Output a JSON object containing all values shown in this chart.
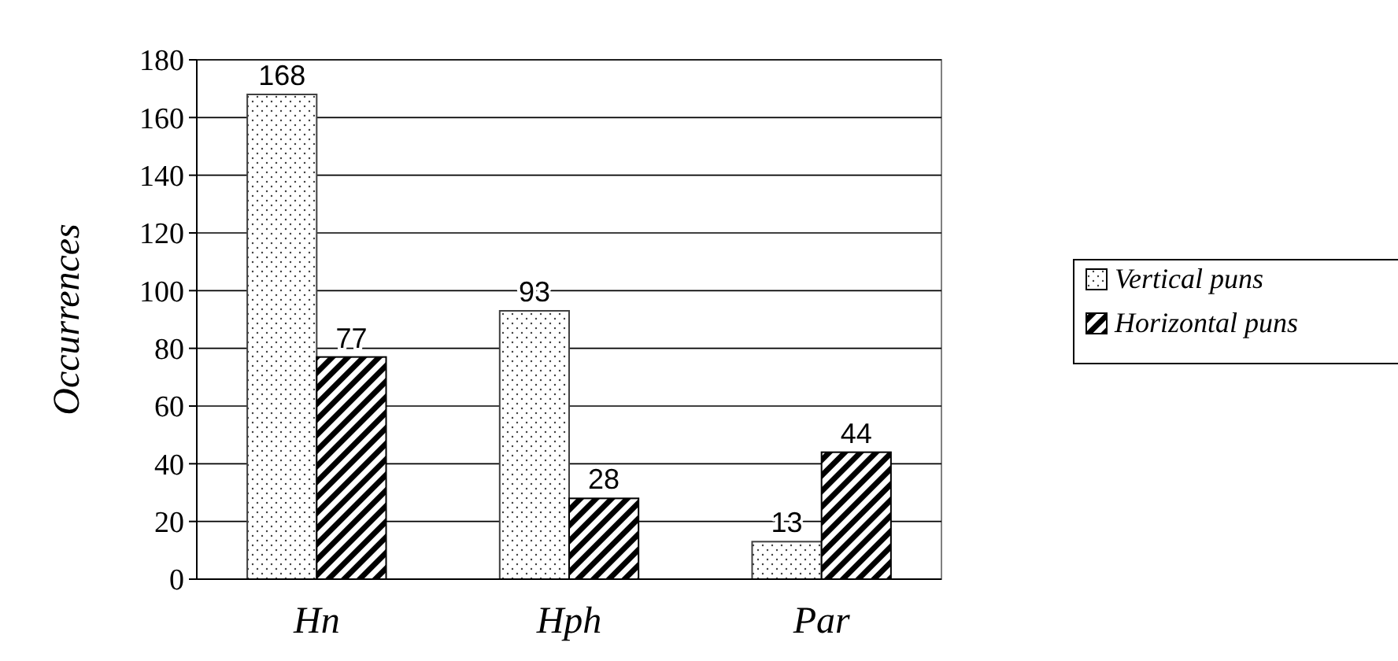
{
  "chart_data": {
    "type": "bar",
    "ylabel": "Occurrences",
    "categories": [
      "Hn",
      "Hph",
      "Par"
    ],
    "series": [
      {
        "name": "Vertical puns",
        "color": "#404040",
        "values": [
          168,
          93,
          13
        ]
      },
      {
        "name": "Horizontal puns",
        "color": "#000000",
        "values": [
          77,
          28,
          44
        ]
      }
    ],
    "ylim": [
      0,
      180
    ],
    "yticks": [
      0,
      20,
      40,
      60,
      80,
      100,
      120,
      140,
      160,
      180
    ],
    "grid": "y",
    "legend": "right",
    "data_labels": true
  }
}
